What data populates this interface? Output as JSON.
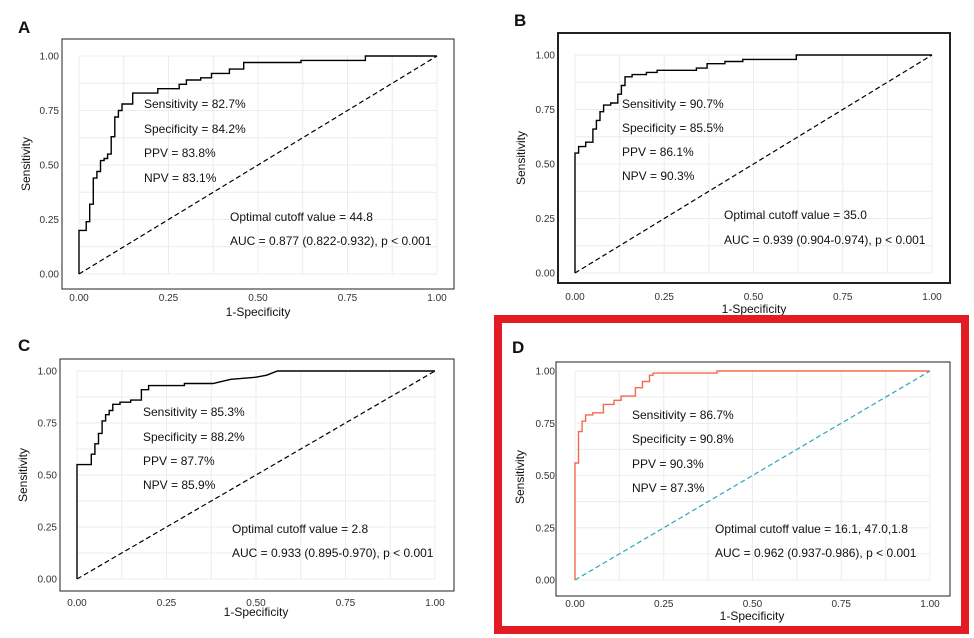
{
  "highlight_color": "#e31b23",
  "chart_data": [
    {
      "type": "line",
      "panel": "A",
      "xlabel": "1-Specificity",
      "ylabel": "Sensitivity",
      "xlim": [
        0,
        1
      ],
      "ylim": [
        0,
        1
      ],
      "xticks": [
        "0.00",
        "0.25",
        "0.50",
        "0.75",
        "1.00"
      ],
      "yticks": [
        "0.00",
        "0.25",
        "0.50",
        "0.75",
        "1.00"
      ],
      "grid": true,
      "roc_color": "#000000",
      "diag_color": "#000000",
      "stats": [
        "Sensitivity = 82.7%",
        "Specificity = 84.2%",
        "PPV = 83.8%",
        "NPV = 83.1%"
      ],
      "cutoff": "Optimal cutoff value = 44.8",
      "auc": "AUC = 0.877 (0.822-0.932), p < 0.001",
      "roc": [
        [
          0,
          0
        ],
        [
          0,
          0.2
        ],
        [
          0.02,
          0.2
        ],
        [
          0.02,
          0.24
        ],
        [
          0.03,
          0.24
        ],
        [
          0.03,
          0.32
        ],
        [
          0.04,
          0.32
        ],
        [
          0.04,
          0.44
        ],
        [
          0.05,
          0.44
        ],
        [
          0.05,
          0.47
        ],
        [
          0.06,
          0.47
        ],
        [
          0.06,
          0.52
        ],
        [
          0.07,
          0.52
        ],
        [
          0.07,
          0.53
        ],
        [
          0.08,
          0.53
        ],
        [
          0.08,
          0.55
        ],
        [
          0.09,
          0.55
        ],
        [
          0.09,
          0.63
        ],
        [
          0.1,
          0.63
        ],
        [
          0.1,
          0.72
        ],
        [
          0.11,
          0.72
        ],
        [
          0.11,
          0.75
        ],
        [
          0.12,
          0.75
        ],
        [
          0.12,
          0.78
        ],
        [
          0.15,
          0.78
        ],
        [
          0.15,
          0.83
        ],
        [
          0.22,
          0.83
        ],
        [
          0.22,
          0.85
        ],
        [
          0.28,
          0.85
        ],
        [
          0.28,
          0.87
        ],
        [
          0.3,
          0.87
        ],
        [
          0.3,
          0.89
        ],
        [
          0.34,
          0.89
        ],
        [
          0.34,
          0.9
        ],
        [
          0.37,
          0.9
        ],
        [
          0.37,
          0.92
        ],
        [
          0.42,
          0.92
        ],
        [
          0.42,
          0.94
        ],
        [
          0.46,
          0.94
        ],
        [
          0.46,
          0.97
        ],
        [
          0.62,
          0.97
        ],
        [
          0.62,
          0.98
        ],
        [
          0.8,
          0.98
        ],
        [
          0.8,
          1.0
        ],
        [
          1.0,
          1.0
        ]
      ]
    },
    {
      "type": "line",
      "panel": "B",
      "xlabel": "1-Specificity",
      "ylabel": "Sensitivity",
      "xlim": [
        0,
        1
      ],
      "ylim": [
        0,
        1
      ],
      "xticks": [
        "0.00",
        "0.25",
        "0.50",
        "0.75",
        "1.00"
      ],
      "yticks": [
        "0.00",
        "0.25",
        "0.50",
        "0.75",
        "1.00"
      ],
      "grid": true,
      "roc_color": "#000000",
      "diag_color": "#000000",
      "stats": [
        "Sensitivity = 90.7%",
        "Specificity = 85.5%",
        "PPV = 86.1%",
        "NPV = 90.3%"
      ],
      "cutoff": "Optimal cutoff value =  35.0",
      "auc": "AUC = 0.939 (0.904-0.974), p < 0.001",
      "roc": [
        [
          0,
          0
        ],
        [
          0,
          0.55
        ],
        [
          0.01,
          0.55
        ],
        [
          0.01,
          0.58
        ],
        [
          0.03,
          0.58
        ],
        [
          0.03,
          0.6
        ],
        [
          0.05,
          0.6
        ],
        [
          0.05,
          0.66
        ],
        [
          0.06,
          0.66
        ],
        [
          0.06,
          0.7
        ],
        [
          0.07,
          0.7
        ],
        [
          0.07,
          0.74
        ],
        [
          0.08,
          0.74
        ],
        [
          0.08,
          0.77
        ],
        [
          0.1,
          0.77
        ],
        [
          0.1,
          0.78
        ],
        [
          0.12,
          0.78
        ],
        [
          0.12,
          0.82
        ],
        [
          0.13,
          0.82
        ],
        [
          0.13,
          0.86
        ],
        [
          0.14,
          0.86
        ],
        [
          0.14,
          0.9
        ],
        [
          0.16,
          0.9
        ],
        [
          0.16,
          0.91
        ],
        [
          0.2,
          0.91
        ],
        [
          0.2,
          0.92
        ],
        [
          0.23,
          0.92
        ],
        [
          0.23,
          0.93
        ],
        [
          0.34,
          0.93
        ],
        [
          0.34,
          0.94
        ],
        [
          0.37,
          0.94
        ],
        [
          0.37,
          0.96
        ],
        [
          0.42,
          0.96
        ],
        [
          0.42,
          0.97
        ],
        [
          0.47,
          0.97
        ],
        [
          0.47,
          0.98
        ],
        [
          0.62,
          0.98
        ],
        [
          0.62,
          1.0
        ],
        [
          1.0,
          1.0
        ]
      ]
    },
    {
      "type": "line",
      "panel": "C",
      "xlabel": "1-Specificity",
      "ylabel": "Sensitivity",
      "xlim": [
        0,
        1
      ],
      "ylim": [
        0,
        1
      ],
      "xticks": [
        "0.00",
        "0.25",
        "0.50",
        "0.75",
        "1.00"
      ],
      "yticks": [
        "0.00",
        "0.25",
        "0.50",
        "0.75",
        "1.00"
      ],
      "grid": true,
      "roc_color": "#000000",
      "diag_color": "#000000",
      "stats": [
        "Sensitivity = 85.3%",
        "Specificity = 88.2%",
        "PPV = 87.7%",
        "NPV = 85.9%"
      ],
      "cutoff": "Optimal cutoff value = 2.8",
      "auc": "AUC = 0.933 (0.895-0.970), p < 0.001",
      "roc": [
        [
          0,
          0
        ],
        [
          0,
          0.55
        ],
        [
          0.04,
          0.55
        ],
        [
          0.04,
          0.6
        ],
        [
          0.05,
          0.6
        ],
        [
          0.05,
          0.65
        ],
        [
          0.06,
          0.65
        ],
        [
          0.06,
          0.7
        ],
        [
          0.07,
          0.7
        ],
        [
          0.07,
          0.76
        ],
        [
          0.08,
          0.76
        ],
        [
          0.08,
          0.79
        ],
        [
          0.09,
          0.79
        ],
        [
          0.09,
          0.81
        ],
        [
          0.1,
          0.81
        ],
        [
          0.1,
          0.84
        ],
        [
          0.12,
          0.84
        ],
        [
          0.12,
          0.85
        ],
        [
          0.15,
          0.85
        ],
        [
          0.15,
          0.86
        ],
        [
          0.18,
          0.86
        ],
        [
          0.18,
          0.91
        ],
        [
          0.2,
          0.91
        ],
        [
          0.2,
          0.93
        ],
        [
          0.3,
          0.93
        ],
        [
          0.3,
          0.94
        ],
        [
          0.38,
          0.94
        ],
        [
          0.43,
          0.96
        ],
        [
          0.5,
          0.97
        ],
        [
          0.53,
          0.98
        ],
        [
          0.56,
          1.0
        ],
        [
          1.0,
          1.0
        ]
      ]
    },
    {
      "type": "line",
      "panel": "D",
      "xlabel": "1-Specificity",
      "ylabel": "Sensitivity",
      "xlim": [
        0,
        1
      ],
      "ylim": [
        0,
        1
      ],
      "xticks": [
        "0.00",
        "0.25",
        "0.50",
        "0.75",
        "1.00"
      ],
      "yticks": [
        "0.00",
        "0.25",
        "0.50",
        "0.75",
        "1.00"
      ],
      "grid": true,
      "roc_color": "#f26b4f",
      "diag_color": "#2aa7b8",
      "stats": [
        "Sensitivity = 86.7%",
        "Specificity = 90.8%",
        "PPV = 90.3%",
        "NPV = 87.3%"
      ],
      "cutoff": "Optimal cutoff value = 16.1, 47.0,1.8",
      "auc": "AUC = 0.962 (0.937-0.986), p < 0.001",
      "roc": [
        [
          0,
          0
        ],
        [
          0,
          0.56
        ],
        [
          0.01,
          0.56
        ],
        [
          0.01,
          0.71
        ],
        [
          0.02,
          0.71
        ],
        [
          0.02,
          0.76
        ],
        [
          0.03,
          0.76
        ],
        [
          0.03,
          0.79
        ],
        [
          0.05,
          0.79
        ],
        [
          0.05,
          0.8
        ],
        [
          0.08,
          0.8
        ],
        [
          0.08,
          0.84
        ],
        [
          0.11,
          0.84
        ],
        [
          0.11,
          0.86
        ],
        [
          0.13,
          0.86
        ],
        [
          0.13,
          0.88
        ],
        [
          0.17,
          0.88
        ],
        [
          0.17,
          0.92
        ],
        [
          0.19,
          0.92
        ],
        [
          0.19,
          0.95
        ],
        [
          0.21,
          0.95
        ],
        [
          0.21,
          0.98
        ],
        [
          0.22,
          0.98
        ],
        [
          0.22,
          0.99
        ],
        [
          0.4,
          0.99
        ],
        [
          0.4,
          1.0
        ],
        [
          1.0,
          1.0
        ]
      ]
    }
  ]
}
